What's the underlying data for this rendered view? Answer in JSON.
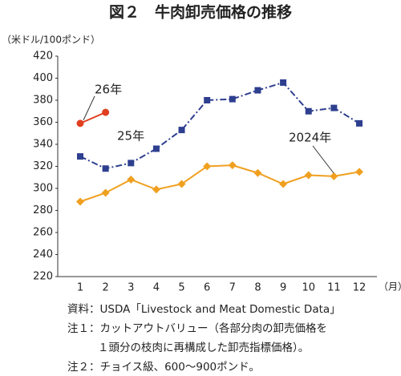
{
  "chart_data": {
    "type": "line",
    "title": "図２　牛肉卸売価格の推移",
    "y_label": "（米ドル/100ポンド）",
    "x_label": "（月）",
    "categories": [
      "1",
      "2",
      "3",
      "4",
      "5",
      "6",
      "7",
      "8",
      "9",
      "10",
      "11",
      "12"
    ],
    "series": [
      {
        "name": "2024年",
        "color": "#f0a020",
        "marker": "diamond",
        "line_style": "solid",
        "values": [
          288,
          296,
          308,
          299,
          304,
          320,
          321,
          314,
          304,
          312,
          311,
          315
        ]
      },
      {
        "name": "25年",
        "color": "#2e3f8f",
        "marker": "square",
        "line_style": "dashdot",
        "values": [
          329,
          318,
          323,
          336,
          353,
          380,
          381,
          389,
          396,
          370,
          373,
          359
        ]
      },
      {
        "name": "26年",
        "color": "#e04020",
        "marker": "circle",
        "line_style": "solid",
        "values": [
          359,
          369,
          null,
          null,
          null,
          null,
          null,
          null,
          null,
          null,
          null,
          null
        ]
      }
    ],
    "ylim": [
      220,
      420
    ],
    "yticks": [
      220,
      240,
      260,
      280,
      300,
      320,
      340,
      360,
      380,
      400,
      420
    ],
    "grid": false,
    "notes": [
      "資料：USDA「Livestock and Meat Domestic Data」",
      "注１：カットアウトバリュー（各部分肉の卸売価格を",
      "１頭分の枝肉に再構成した卸売指標価格）。",
      "注２：チョイス級、600～900ポンド。"
    ]
  }
}
